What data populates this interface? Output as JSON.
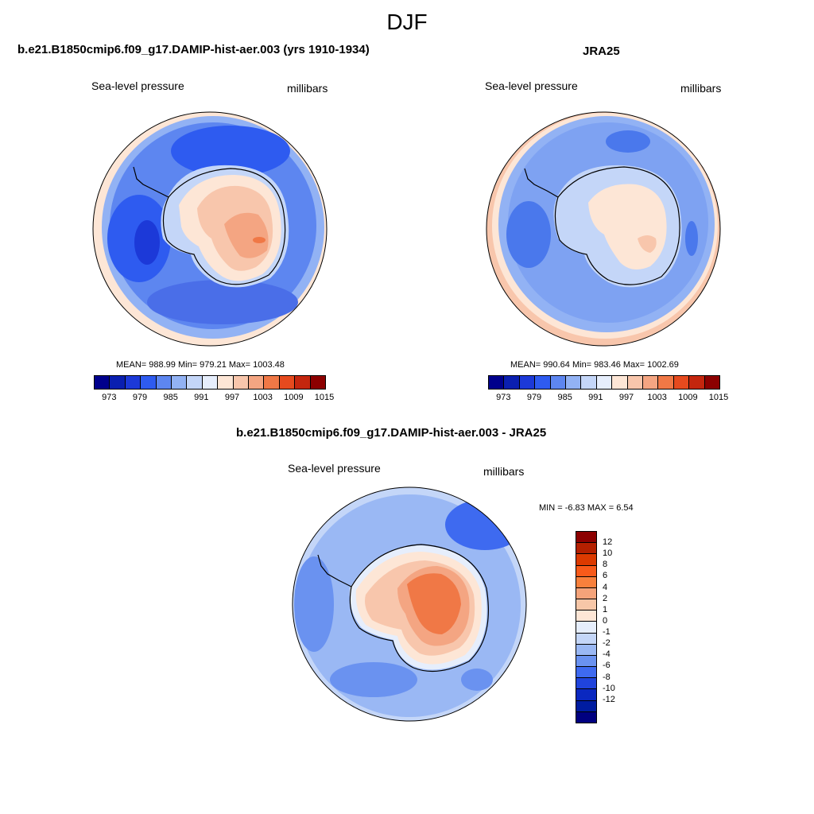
{
  "main_title": "DJF",
  "panels": [
    {
      "title": "b.e21.B1850cmip6.f09_g17.DAMIP-hist-aer.003 (yrs 1910-1934)",
      "variable": "Sea-level pressure",
      "units": "millibars",
      "stats": "MEAN= 988.99  Min= 979.21  Max= 1003.48"
    },
    {
      "title": "JRA25",
      "variable": "Sea-level pressure",
      "units": "millibars",
      "stats": "MEAN= 990.64  Min= 983.46  Max= 1002.69"
    },
    {
      "title": "b.e21.B1850cmip6.f09_g17.DAMIP-hist-aer.003 - JRA25",
      "variable": "Sea-level pressure",
      "units": "millibars",
      "stats": "MIN =  -6.83 MAX =   6.54"
    }
  ],
  "colorbar_abs": {
    "labels": [
      "973",
      "979",
      "985",
      "991",
      "997",
      "1003",
      "1009",
      "1015"
    ],
    "colors": [
      "#00008c",
      "#0a1fb0",
      "#1c39d8",
      "#2e5bf0",
      "#5d86f0",
      "#92b2f4",
      "#c4d6f8",
      "#e6eefc",
      "#fde6d6",
      "#f8c6ac",
      "#f4a582",
      "#f07846",
      "#e64a1e",
      "#c4260e",
      "#8c0000"
    ]
  },
  "colorbar_diff": {
    "labels": [
      "12",
      "10",
      "8",
      "6",
      "4",
      "2",
      "1",
      "0",
      "-1",
      "-2",
      "-4",
      "-6",
      "-8",
      "-10",
      "-12"
    ],
    "colors": [
      "#8c0000",
      "#b42000",
      "#dc3a00",
      "#f85a1a",
      "#f8803c",
      "#f4a37a",
      "#f7c7a8",
      "#fde6d6",
      "#e6eefc",
      "#c4d6f8",
      "#9ab8f4",
      "#6a92f0",
      "#3e6af0",
      "#2044dc",
      "#0a28c0",
      "#001ca0",
      "#000080"
    ]
  },
  "colors": {
    "coast": "#000000",
    "ocean_abs": "#4a78ec",
    "ocean_abs_light": "#7ea2f2",
    "ocean_diff": "#6a92f0"
  }
}
